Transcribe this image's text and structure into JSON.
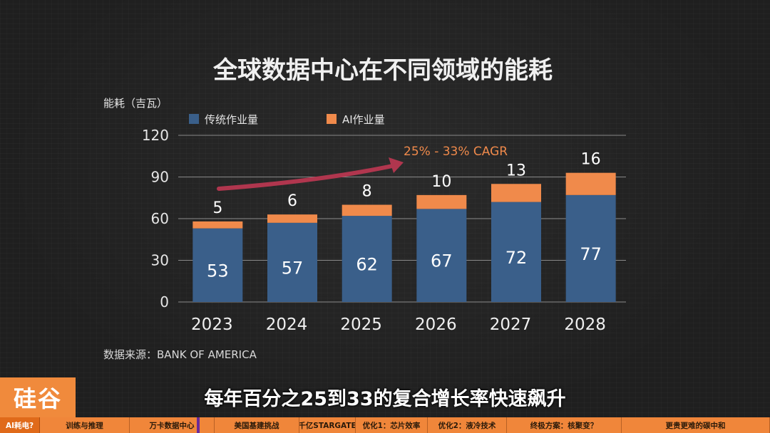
{
  "chart_data": {
    "type": "bar",
    "title": "全球数据中心在不同领域的能耗",
    "ylabel": "能耗（吉瓦）",
    "categories": [
      "2023",
      "2024",
      "2025",
      "2026",
      "2027",
      "2028"
    ],
    "series": [
      {
        "name": "传统作业量",
        "values": [
          53,
          57,
          62,
          67,
          72,
          77
        ],
        "color": "#3a5f8a"
      },
      {
        "name": "AI作业量",
        "values": [
          5,
          6,
          8,
          10,
          13,
          16
        ],
        "color": "#f08a4b"
      }
    ],
    "stacked": true,
    "ylim": [
      0,
      120
    ],
    "yticks": [
      0,
      30,
      60,
      90,
      120
    ],
    "grid": true,
    "legend_position": "top-left",
    "annotation": "25% - 33% CAGR",
    "source": "数据来源：BANK OF AMERICA"
  },
  "branding": {
    "logo_text": "硅谷"
  },
  "subtitle": "每年百分之25到33的复合增长率快速飙升",
  "nav": {
    "items": [
      "AI耗电?",
      "训练与推理",
      "万卡数据中心",
      "美国基建挑战",
      "千亿STARGATE",
      "优化1：芯片效率",
      "优化2：液冷技术",
      "终极方案：核聚变？",
      "更贵更难的碳中和"
    ]
  },
  "colors": {
    "accent": "#f0863a",
    "text": "#e6e6e6",
    "annotation": "#f08a4b",
    "arrow": "#b0364e"
  }
}
